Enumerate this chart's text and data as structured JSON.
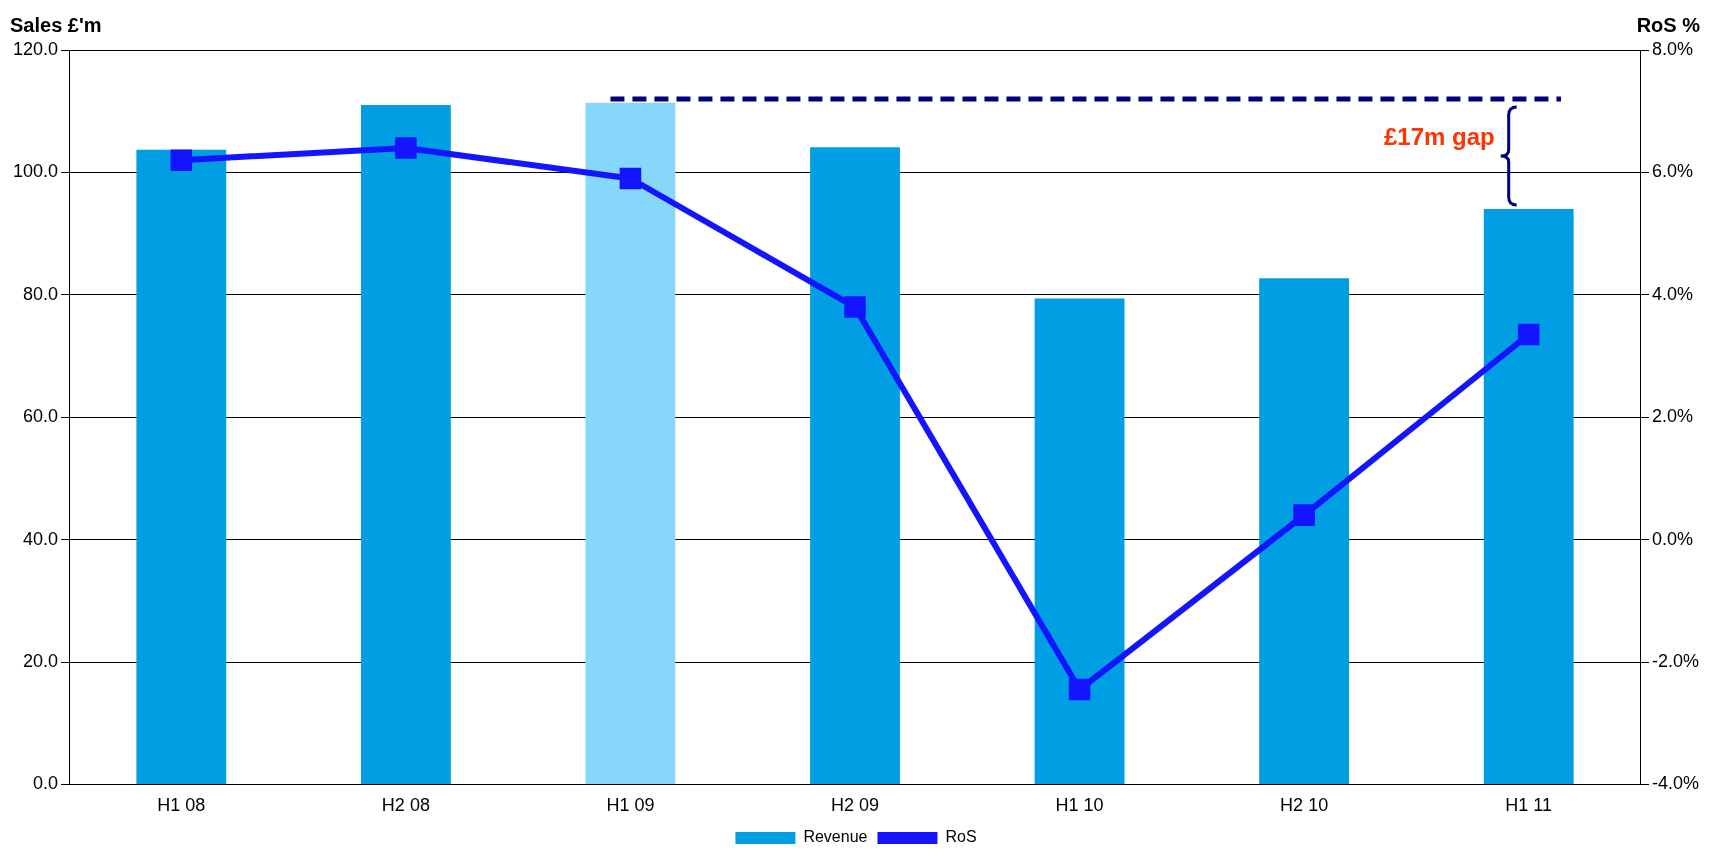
{
  "chart_data": {
    "type": "bar",
    "ylabel": "Sales £'m",
    "y2label": "RoS %",
    "categories": [
      "H1 08",
      "H2 08",
      "H1 09",
      "H2 09",
      "H1 10",
      "H2 10",
      "H1 11"
    ],
    "series": [
      {
        "name": "Revenue",
        "colors": [
          "#009fe3",
          "#009fe3",
          "#87d7fb",
          "#009fe3",
          "#009fe3",
          "#009fe3",
          "#009fe3"
        ],
        "color": "#009fe3",
        "values": [
          103.7,
          111.0,
          111.4,
          104.1,
          79.4,
          82.7,
          94.0
        ]
      },
      {
        "name": "RoS",
        "type": "line",
        "axis": "y2",
        "color": "#1414ff",
        "marker": "square",
        "values": [
          6.2,
          6.4,
          5.9,
          3.8,
          -2.45,
          0.4,
          3.35
        ]
      }
    ],
    "ylim": [
      0,
      120
    ],
    "yticks": [
      {
        "value": 0,
        "label": "0.0"
      },
      {
        "value": 20,
        "label": "20.0"
      },
      {
        "value": 40,
        "label": "40.0"
      },
      {
        "value": 60,
        "label": "60.0"
      },
      {
        "value": 80,
        "label": "80.0"
      },
      {
        "value": 100,
        "label": "100.0"
      },
      {
        "value": 120,
        "label": "120.0"
      }
    ],
    "y2lim": [
      -4,
      8
    ],
    "y2ticks": [
      {
        "value": -4,
        "label": "-4.0%"
      },
      {
        "value": -2,
        "label": "-2.0%"
      },
      {
        "value": 0,
        "label": "0.0%"
      },
      {
        "value": 2,
        "label": "2.0%"
      },
      {
        "value": 4,
        "label": "4.0%"
      },
      {
        "value": 6,
        "label": "6.0%"
      },
      {
        "value": 8,
        "label": "8.0%"
      }
    ],
    "ref_lines": [
      {
        "axis": "y",
        "value": 112,
        "color": "#000080",
        "line_style": "dashed"
      }
    ],
    "annotations": [
      {
        "text": "£17m gap",
        "x": "H1 11",
        "y": 94.0
      }
    ],
    "grid": "y",
    "legend": "bottom"
  }
}
